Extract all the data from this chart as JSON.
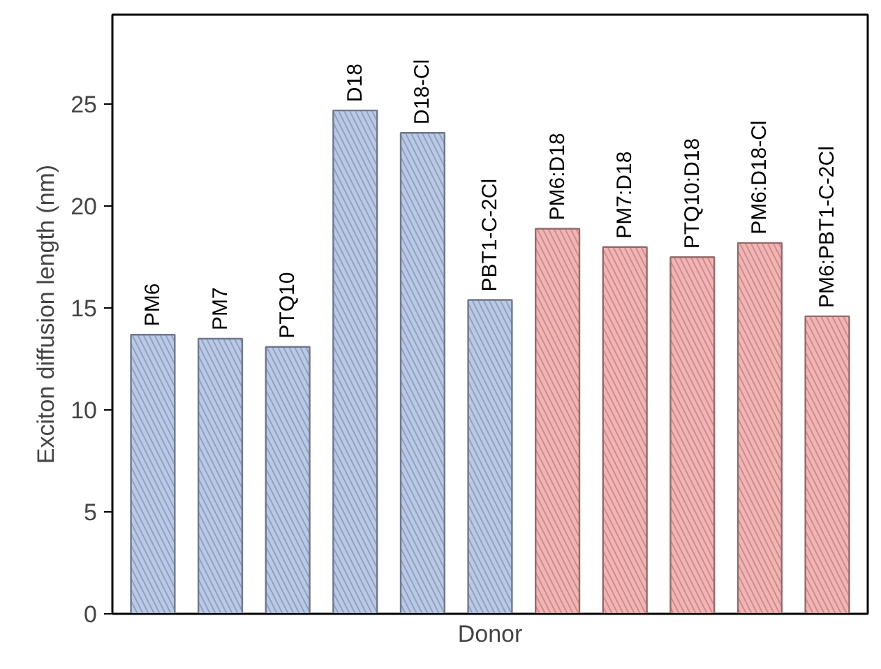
{
  "chart_data": {
    "type": "bar",
    "xlabel": "Donor",
    "ylabel": "Exciton diffusion length (nm)",
    "categories": [
      "PM6",
      "PM7",
      "PTQ10",
      "D18",
      "D18-Cl",
      "PBT1-C-2Cl",
      "PM6:D18",
      "PM7:D18",
      "PTQ10:D18",
      "PM6:D18-Cl",
      "PM6:PBT1-C-2Cl"
    ],
    "values": [
      13.7,
      13.5,
      13.1,
      24.7,
      23.6,
      15.4,
      18.9,
      18.0,
      17.5,
      18.2,
      14.6
    ],
    "colors": [
      "#b9c9e8",
      "#b9c9e8",
      "#b9c9e8",
      "#b9c9e8",
      "#b9c9e8",
      "#b9c9e8",
      "#f5b3b3",
      "#f5b3b3",
      "#f5b3b3",
      "#f5b3b3",
      "#f5b3b3"
    ],
    "ylim": [
      0,
      29.4
    ],
    "yticks": [
      0,
      5,
      10,
      15,
      20,
      25
    ],
    "grid": false
  }
}
